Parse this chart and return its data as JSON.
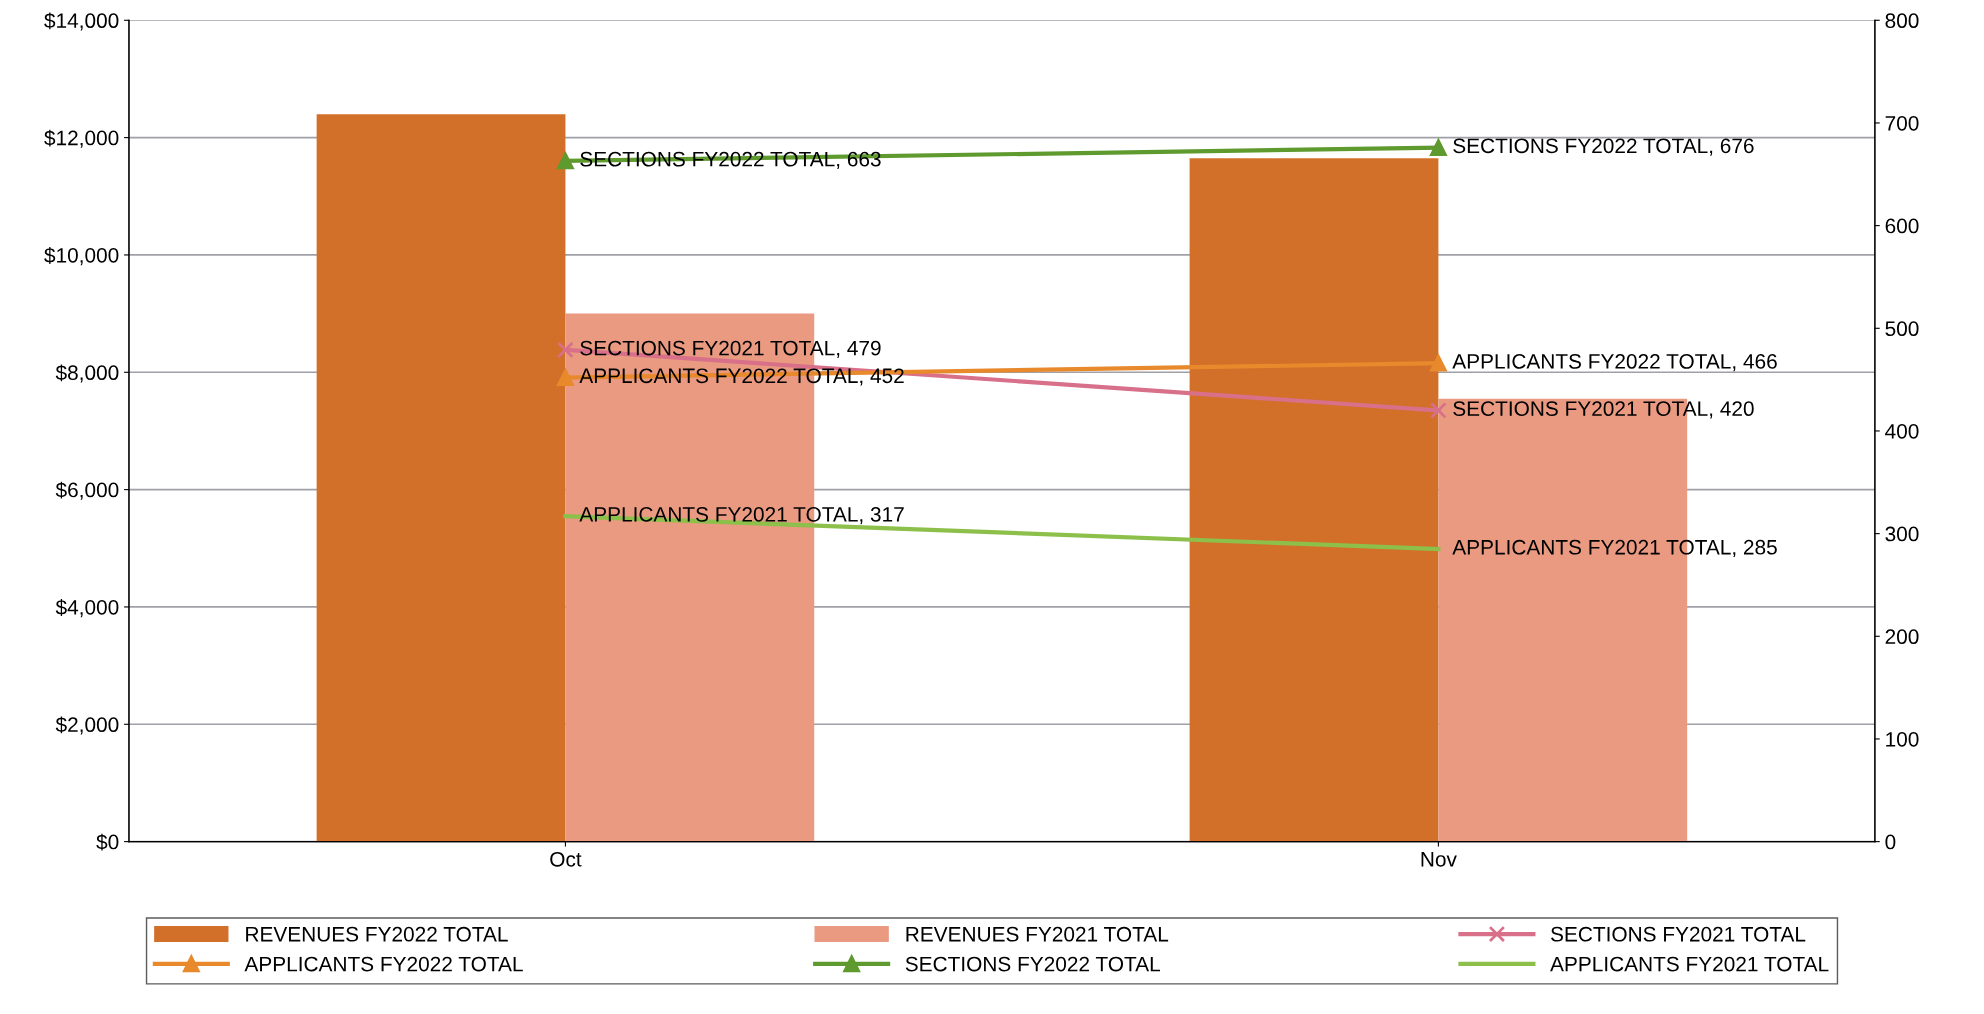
{
  "chart_data": {
    "type": "bar",
    "categories": [
      "Oct",
      "Nov"
    ],
    "series": [
      {
        "name": "REVENUES FY2022 TOTAL",
        "color": "#d2702a",
        "values": [
          12400,
          11650
        ]
      },
      {
        "name": "REVENUES FY2021 TOTAL",
        "color": "#e99a80",
        "values": [
          9000,
          7550
        ]
      },
      {
        "name": "SECTIONS FY2021 TOTAL",
        "type": "line",
        "axis": "y2",
        "marker": "cross",
        "color": "#d8708a",
        "values": [
          479,
          420
        ],
        "value_labels": [
          "SECTIONS FY2021 TOTAL, 479",
          "SECTIONS FY2021 TOTAL, 420"
        ]
      },
      {
        "name": "APPLICANTS FY2022 TOTAL",
        "type": "line",
        "axis": "y2",
        "marker": "triangle",
        "color": "#e8892c",
        "values": [
          452,
          466
        ],
        "value_labels": [
          "APPLICANTS FY2022 TOTAL, 452",
          "APPLICANTS FY2022 TOTAL, 466"
        ]
      },
      {
        "name": "SECTIONS FY2022 TOTAL",
        "type": "line",
        "axis": "y2",
        "marker": "triangle",
        "color": "#5e9a2e",
        "values": [
          663,
          676
        ],
        "value_labels": [
          "SECTIONS FY2022 TOTAL, 663",
          "SECTIONS FY2022 TOTAL, 676"
        ]
      },
      {
        "name": "APPLICANTS FY2021 TOTAL",
        "type": "line",
        "axis": "y2",
        "marker": "none",
        "color": "#8cc04a",
        "values": [
          317,
          285
        ],
        "value_labels": [
          "APPLICANTS FY2021 TOTAL, 317",
          "APPLICANTS FY2021 TOTAL, 285"
        ]
      }
    ],
    "ylim": [
      0,
      14000
    ],
    "yticks": [
      {
        "value": 0,
        "label": "$0"
      },
      {
        "value": 2000,
        "label": "$2,000"
      },
      {
        "value": 4000,
        "label": "$4,000"
      },
      {
        "value": 6000,
        "label": "$6,000"
      },
      {
        "value": 8000,
        "label": "$8,000"
      },
      {
        "value": 10000,
        "label": "$10,000"
      },
      {
        "value": 12000,
        "label": "$12,000"
      },
      {
        "value": 14000,
        "label": "$14,000"
      }
    ],
    "y2lim": [
      0,
      800
    ],
    "y2ticks": [
      0,
      100,
      200,
      300,
      400,
      500,
      600,
      700,
      800
    ],
    "grid": "y",
    "legend": "bottom"
  }
}
